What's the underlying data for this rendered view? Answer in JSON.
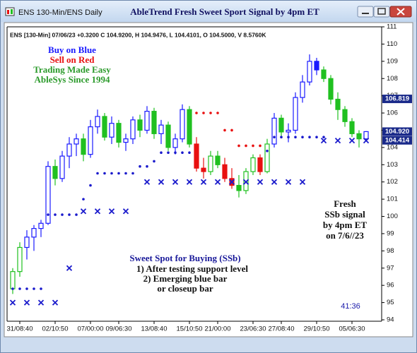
{
  "window_title": "ENS 130-Min/ENS Daily",
  "chart_data": {
    "type": "candlestick",
    "title": "AbleTrend Fresh Sweet Sport Signal by 4pm ET",
    "info_line": "ENS [130-Min] 07/06/23 +0.3200 C 104.9200, H 104.9476, L 104.4101, O 104.5000, V 8.5760K",
    "notes": [
      "Buy on Blue",
      "Sell on Red",
      "Trading Made Easy",
      "AbleSys Since 1994"
    ],
    "fresh_note": [
      "Fresh",
      "SSb signal",
      "by 4pm ET",
      "on 7/6//23"
    ],
    "ssb_note": [
      "Sweet Spot for Buying (SSb)",
      "1) After testing support level",
      "2) Emerging blue bar",
      "or closeup bar"
    ],
    "timer": "41:36",
    "categories": [
      null,
      "31/08:40",
      null,
      null,
      null,
      null,
      "02/10:50",
      null,
      null,
      null,
      null,
      "07/00:00",
      null,
      null,
      null,
      "09/06:30",
      null,
      null,
      null,
      null,
      "13/08:40",
      null,
      null,
      null,
      null,
      "15/10:50",
      null,
      null,
      null,
      "21/00:00",
      null,
      null,
      null,
      null,
      "23/06:30",
      null,
      null,
      null,
      "27/08:40",
      null,
      null,
      null,
      null,
      "29/10:50",
      null,
      null,
      null,
      null,
      "05/06:30",
      null,
      null
    ],
    "open": [
      95.8,
      96.8,
      98.2,
      98.8,
      99.3,
      99.6,
      102.9,
      102.2,
      103.5,
      104.2,
      104.5,
      103.6,
      105.2,
      105.8,
      104.6,
      105.4,
      104.3,
      104.5,
      105.6,
      105.0,
      106.1,
      104.8,
      105.3,
      104.0,
      104.5,
      106.2,
      104.2,
      102.8,
      102.6,
      103.5,
      103.0,
      102.2,
      101.8,
      101.5,
      102.6,
      103.4,
      102.6,
      104.2,
      105.7,
      104.9,
      105.0,
      106.9,
      107.8,
      109.0,
      108.5,
      108.0,
      106.8,
      106.2,
      105.5,
      104.8,
      104.5
    ],
    "high": [
      97.0,
      98.5,
      99.2,
      99.5,
      99.8,
      103.2,
      103.3,
      103.8,
      104.6,
      104.8,
      104.8,
      105.6,
      106.2,
      106.0,
      105.8,
      105.6,
      104.8,
      105.8,
      105.9,
      106.4,
      106.3,
      105.6,
      105.5,
      104.8,
      106.5,
      106.4,
      104.6,
      103.4,
      103.8,
      103.8,
      103.4,
      102.8,
      102.4,
      102.8,
      103.6,
      103.6,
      104.5,
      106.0,
      105.9,
      105.4,
      107.2,
      108.2,
      109.4,
      109.2,
      108.7,
      108.2,
      107.2,
      106.4,
      105.7,
      105.0,
      104.9476
    ],
    "low": [
      95.5,
      96.5,
      97.5,
      98.0,
      98.8,
      99.5,
      101.8,
      102.0,
      102.8,
      103.5,
      103.2,
      103.4,
      104.8,
      104.4,
      104.2,
      104.0,
      103.8,
      104.2,
      104.6,
      104.8,
      104.5,
      104.2,
      103.8,
      103.6,
      104.3,
      104.0,
      102.6,
      102.2,
      102.4,
      102.8,
      102.0,
      101.6,
      101.1,
      101.3,
      102.4,
      102.4,
      102.5,
      104.0,
      104.6,
      104.3,
      104.8,
      106.6,
      107.6,
      108.2,
      107.8,
      106.5,
      105.6,
      105.2,
      104.6,
      104.0,
      104.4101
    ],
    "close": [
      96.8,
      98.2,
      98.8,
      99.3,
      99.6,
      102.9,
      102.2,
      103.5,
      104.2,
      104.5,
      103.6,
      105.2,
      105.8,
      104.6,
      105.4,
      104.3,
      104.5,
      105.6,
      105.0,
      106.1,
      104.8,
      105.3,
      104.0,
      104.5,
      106.2,
      104.2,
      102.8,
      102.6,
      103.5,
      103.0,
      102.2,
      101.8,
      101.5,
      102.6,
      103.4,
      102.6,
      104.2,
      105.7,
      104.9,
      105.0,
      106.9,
      107.8,
      109.0,
      108.5,
      108.0,
      106.8,
      106.2,
      105.5,
      104.8,
      104.5,
      104.92
    ],
    "bar_colors": [
      "#20c020",
      "#20c020",
      "#1a1aff",
      "#1a1aff",
      "#1a1aff",
      "#1a1aff",
      "#20c020",
      "#1a1aff",
      "#1a1aff",
      "#1a1aff",
      "#20c020",
      "#1a1aff",
      "#1a1aff",
      "#20c020",
      "#1a1aff",
      "#20c020",
      "#1a1aff",
      "#1a1aff",
      "#20c020",
      "#1a1aff",
      "#20c020",
      "#1a1aff",
      "#20c020",
      "#1a1aff",
      "#1a1aff",
      "#20c020",
      "#e81010",
      "#e81010",
      "#20c020",
      "#20c020",
      "#e81010",
      "#e81010",
      "#20c020",
      "#20c020",
      "#20c020",
      "#e81010",
      "#20c020",
      "#1a1aff",
      "#20c020",
      "#1a1aff",
      "#1a1aff",
      "#1a1aff",
      "#1a1aff",
      "#1a1aff",
      "#20c020",
      "#20c020",
      "#20c020",
      "#20c020",
      "#20c020",
      "#20c020",
      "#1a1aff"
    ],
    "support_dots": {
      "color": "#1a1acc",
      "values": [
        95.8,
        95.8,
        95.8,
        95.8,
        95.8,
        100.1,
        100.1,
        100.1,
        100.1,
        100.1,
        101,
        101.8,
        102.5,
        102.5,
        102.5,
        102.5,
        102.5,
        102.5,
        102.9,
        102.9,
        103.2,
        103.7,
        103.7,
        103.7,
        103.7,
        103.7,
        null,
        null,
        null,
        null,
        null,
        null,
        null,
        null,
        null,
        null,
        103.8,
        104.6,
        104.6,
        104.6,
        104.6,
        104.6,
        104.6,
        104.6,
        104.6,
        null,
        null,
        null,
        null,
        null,
        null
      ]
    },
    "resistance_dots": {
      "color": "#e81010",
      "values": [
        null,
        null,
        null,
        null,
        null,
        null,
        null,
        null,
        null,
        null,
        null,
        null,
        null,
        null,
        null,
        null,
        null,
        null,
        null,
        null,
        null,
        null,
        null,
        null,
        null,
        null,
        106,
        106,
        106,
        106,
        105,
        105,
        104.1,
        104.1,
        104.1,
        104.1,
        null,
        null,
        null,
        null,
        null,
        null,
        null,
        null,
        null,
        null,
        null,
        null,
        null,
        null,
        null
      ]
    },
    "x_marks": {
      "color": "#1a1acc",
      "values": [
        95,
        null,
        95,
        null,
        95,
        null,
        95,
        null,
        97,
        null,
        100.3,
        null,
        100.3,
        null,
        100.3,
        null,
        100.3,
        null,
        null,
        102,
        null,
        102,
        null,
        102,
        null,
        102,
        null,
        102,
        null,
        102,
        null,
        102,
        null,
        102,
        null,
        102,
        null,
        102,
        null,
        102,
        null,
        102,
        null,
        null,
        104.4,
        null,
        104.4,
        null,
        104.4,
        null,
        104.4
      ]
    },
    "ylim": [
      94,
      111
    ],
    "yticks": [
      94,
      95,
      96,
      97,
      98,
      99,
      100,
      101,
      102,
      103,
      104,
      105,
      106,
      107,
      108,
      109,
      110,
      111
    ],
    "price_tags": [
      {
        "value": 106.819,
        "color": "#1a2a8a"
      },
      {
        "value": 104.92,
        "label": "104.920",
        "color": "#1a2a8a"
      },
      {
        "value": 104.414,
        "color": "#1a2a8a"
      }
    ]
  }
}
